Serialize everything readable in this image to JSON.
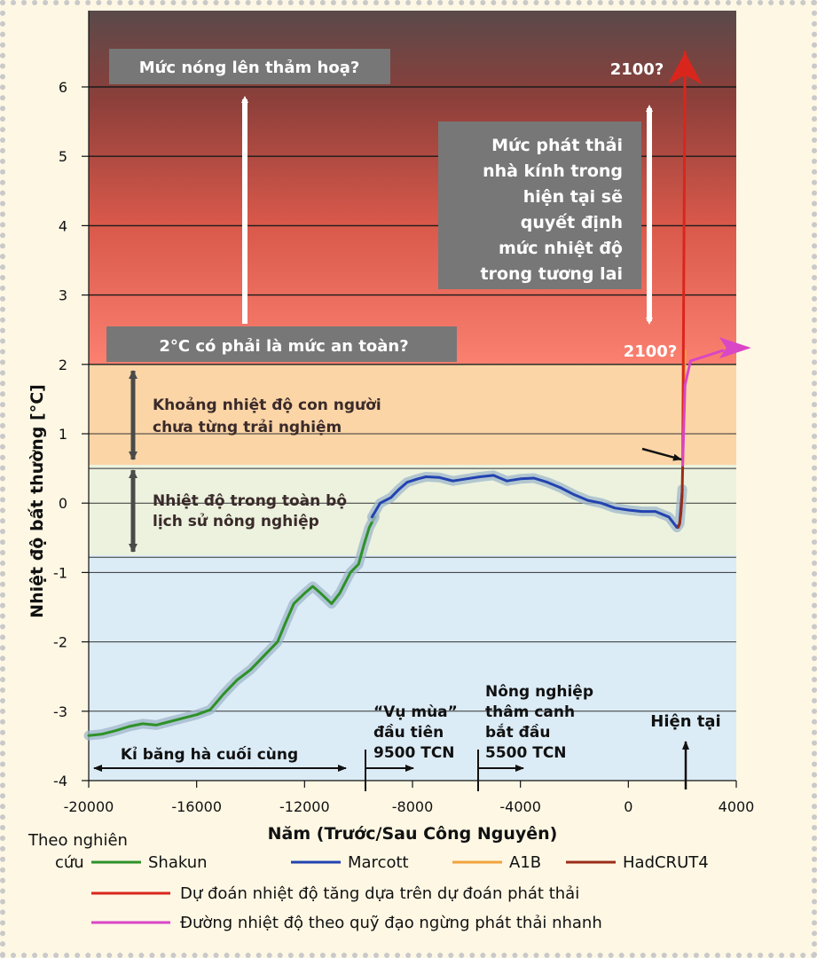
{
  "chart_data": {
    "type": "line",
    "xlabel": "Năm (Trước/Sau Công Nguyên)",
    "ylabel": "Nhiệt độ bất thường [°C]",
    "xlim": [
      -20000,
      4000
    ],
    "ylim": [
      -4,
      7
    ],
    "x_ticks": [
      -20000,
      -16000,
      -12000,
      -8000,
      -4000,
      0,
      4000
    ],
    "y_ticks": [
      -4,
      -3,
      -2,
      -1,
      0,
      1,
      2,
      3,
      4,
      5,
      6
    ],
    "x_tick_labels": [
      "-20000",
      "-16000",
      "-12000",
      "-8000",
      "-4000",
      "0",
      "4000"
    ],
    "y_tick_labels": [
      "-4",
      "-3",
      "-2",
      "-1",
      "0",
      "1",
      "2",
      "3",
      "4",
      "5",
      "6"
    ],
    "bands": [
      {
        "name": "catastrophic",
        "from": 2,
        "to": 7
      },
      {
        "name": "never-experienced",
        "from": 0.5,
        "to": 2,
        "color": "#fbd5a6"
      },
      {
        "name": "agricultural-history",
        "from": -0.78,
        "to": 0.5,
        "color": "#ecf2de"
      },
      {
        "name": "ice-age",
        "from": -4,
        "to": -0.78,
        "color": "#dcecf7"
      }
    ],
    "series": [
      {
        "name": "Shakun",
        "color": "#2e9128",
        "x": [
          -20000,
          -19500,
          -19000,
          -18500,
          -18000,
          -17500,
          -17000,
          -16500,
          -16000,
          -15500,
          -15000,
          -14500,
          -14000,
          -13500,
          -13000,
          -12700,
          -12400,
          -12000,
          -11700,
          -11400,
          -11000,
          -10700,
          -10300,
          -10000,
          -9800,
          -9600,
          -9400
        ],
        "y": [
          -3.35,
          -3.33,
          -3.28,
          -3.22,
          -3.18,
          -3.2,
          -3.15,
          -3.1,
          -3.05,
          -2.98,
          -2.75,
          -2.55,
          -2.4,
          -2.2,
          -2.0,
          -1.72,
          -1.45,
          -1.3,
          -1.2,
          -1.3,
          -1.45,
          -1.3,
          -1.0,
          -0.88,
          -0.6,
          -0.35,
          -0.2
        ]
      },
      {
        "name": "Marcott",
        "color": "#2343b0",
        "x": [
          -9500,
          -9200,
          -8800,
          -8500,
          -8200,
          -7800,
          -7500,
          -7000,
          -6500,
          -6000,
          -5500,
          -5000,
          -4500,
          -4000,
          -3500,
          -3000,
          -2500,
          -2000,
          -1500,
          -1000,
          -500,
          0,
          500,
          1000,
          1500,
          1800,
          1900,
          2000
        ],
        "y": [
          -0.2,
          0.0,
          0.08,
          0.2,
          0.3,
          0.35,
          0.38,
          0.37,
          0.32,
          0.35,
          0.38,
          0.4,
          0.32,
          0.35,
          0.36,
          0.3,
          0.22,
          0.12,
          0.04,
          0.0,
          -0.07,
          -0.1,
          -0.12,
          -0.12,
          -0.2,
          -0.35,
          -0.3,
          0.2
        ]
      },
      {
        "name": "HadCRUT4",
        "color": "#9a2d17",
        "x": [
          1850,
          1900,
          1950,
          1990,
          2015
        ],
        "y": [
          -0.35,
          -0.3,
          -0.15,
          0.1,
          0.55
        ]
      },
      {
        "name": "A1B",
        "color": "#f1a33c",
        "x": [
          2015,
          2050,
          2100
        ],
        "y": [
          0.55,
          1.2,
          2.2
        ]
      },
      {
        "name": "Dự đoán nhiệt độ tăng dựa trên dự đoán phát thải",
        "color": "#d9261d",
        "x": [
          2015,
          2050,
          2100
        ],
        "y": [
          0.6,
          3.0,
          6.5
        ]
      },
      {
        "name": "Đường nhiệt độ theo quỹ đạo ngừng phát thải nhanh",
        "color": "#d946c6",
        "x": [
          2015,
          2100,
          2300,
          2700,
          3500
        ],
        "y": [
          0.55,
          1.7,
          2.05,
          2.1,
          2.2
        ]
      }
    ],
    "annotations": {
      "catastrophic": "Mức nóng lên thảm hoạ?",
      "safe_question": "2°C có phải là mức an toàn?",
      "never_experienced": [
        "Khoảng nhiệt độ con người",
        "chưa từng trải nghiệm"
      ],
      "agri_history": [
        "Nhiệt độ trong toàn bộ",
        "lịch sử nông nghiệp"
      ],
      "emissions_box": [
        "Mức phát thải",
        "nhà kính trong",
        "hiện tại sẽ",
        "quyết định",
        "mức nhiệt độ",
        "trong tương lai"
      ],
      "year_2100_top": "2100?",
      "year_2100_bottom": "2100?",
      "ice_age": "Kỉ băng hà cuối cùng",
      "first_harvest": [
        "“Vụ mùa”",
        "đầu tiên",
        "9500 TCN"
      ],
      "intensive_agri": [
        "Nông nghiệp",
        "thâm canh",
        "bắt đầu",
        "5500 TCN"
      ],
      "present": "Hiện tại"
    },
    "legend": {
      "by_study": [
        "Theo nghiên",
        "cứu"
      ],
      "items": [
        {
          "label": "Shakun",
          "color": "#2e9128"
        },
        {
          "label": "Marcott",
          "color": "#2343b0"
        },
        {
          "label": "A1B",
          "color": "#f1a33c"
        },
        {
          "label": "HadCRUT4",
          "color": "#9a2d17"
        }
      ],
      "projection": {
        "label": "Dự đoán nhiệt độ tăng dựa trên dự đoán phát thải",
        "color": "#d9261d"
      },
      "rapid_stop": {
        "label": "Đường nhiệt độ theo quỹ đạo ngừng phát thải nhanh",
        "color": "#d946c6"
      }
    }
  }
}
